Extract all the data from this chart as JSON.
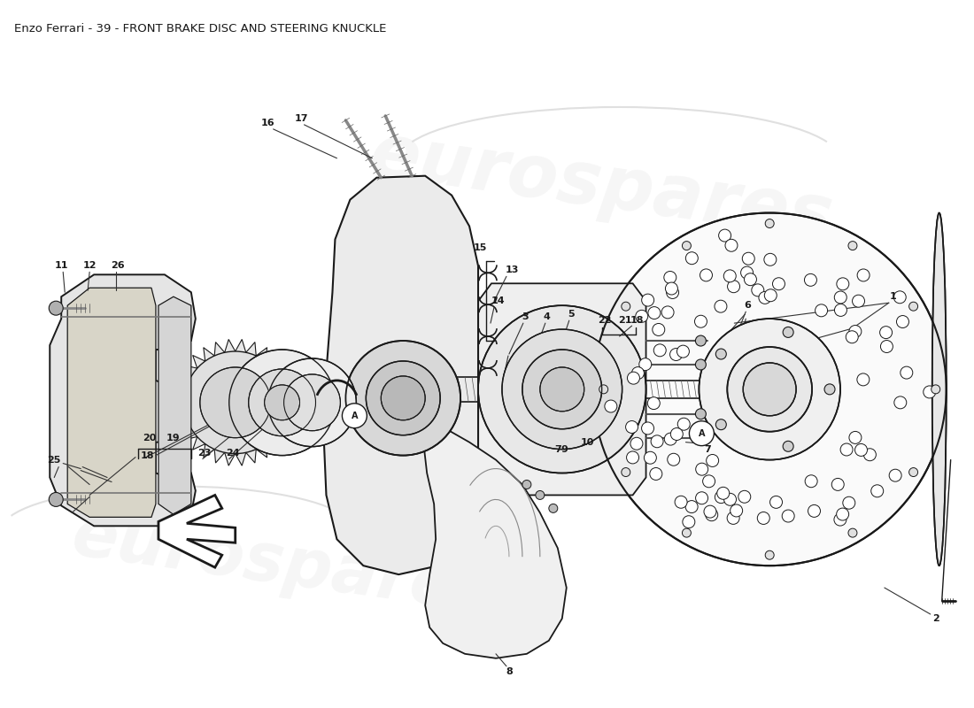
{
  "title": "Enzo Ferrari - 39 - FRONT BRAKE DISC AND STEERING KNUCKLE",
  "title_fontsize": 9.5,
  "title_color": "#1a1a1a",
  "bg_color": "#ffffff",
  "line_color": "#1a1a1a",
  "watermark_text": "eurospares",
  "watermark_color": "#cccccc",
  "fig_width": 11.0,
  "fig_height": 8.0,
  "dpi": 100
}
